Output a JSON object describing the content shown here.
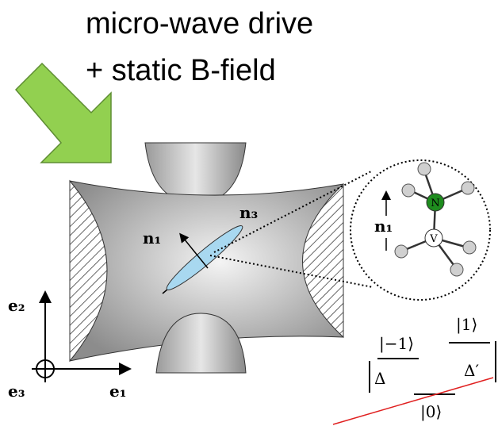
{
  "header": {
    "lines": [
      "micro-wave drive",
      "+ static B-field"
    ]
  },
  "trap": {
    "axis_labels": [
      "n₁",
      "n₃"
    ]
  },
  "zoom": {
    "atoms": [
      "N",
      "V"
    ],
    "axis_label": "n₁"
  },
  "frame": {
    "labels": [
      "e₂",
      "e₁",
      "e₃"
    ]
  },
  "levels": {
    "labels": [
      "|−1⟩",
      "|1⟩",
      "Δ",
      "Δ′",
      "|0⟩"
    ]
  }
}
